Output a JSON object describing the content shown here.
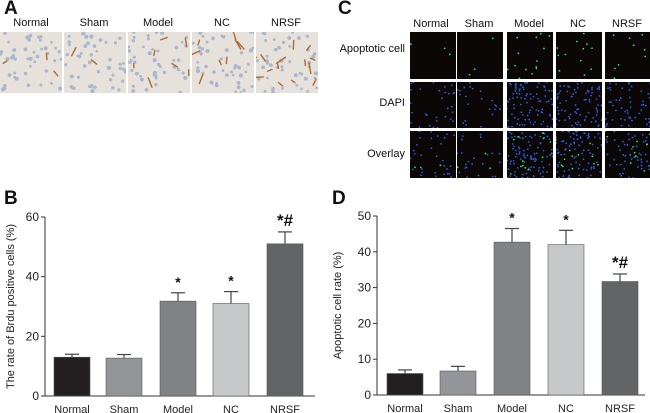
{
  "panels": {
    "A": {
      "label": "A",
      "columns": [
        "Normal",
        "Sham",
        "Model",
        "NC",
        "NRSF"
      ]
    },
    "C": {
      "label": "C",
      "columns": [
        "Normal",
        "Sham",
        "Model",
        "NC",
        "NRSF"
      ],
      "rows": [
        "Apoptotic cell",
        "DAPI",
        "Overlay"
      ]
    },
    "B": {
      "label": "B"
    },
    "D": {
      "label": "D"
    }
  },
  "colors": {
    "Normal": "#231f20",
    "Sham": "#939598",
    "Model": "#808285",
    "NC": "#c7c8ca",
    "NRSF": "#636466",
    "ihc_bg": "#e6e1da",
    "ihc_stain": "#b06a2e",
    "ihc_nuclei": "#a9b6cc",
    "fluor_bg": "#0b0707",
    "green": "#3de04a",
    "blue": "#2f5bd8"
  },
  "chart_data": [
    {
      "type": "bar",
      "panel": "B",
      "title": "",
      "categories": [
        "Normal",
        "Sham",
        "Model",
        "NC",
        "NRSF"
      ],
      "values": [
        13,
        12.7,
        31.8,
        31,
        51
      ],
      "errors": [
        1,
        1.2,
        2.8,
        4,
        4
      ],
      "annotations": [
        "",
        "",
        "*",
        "*",
        "*#"
      ],
      "xlabel": "",
      "ylabel": "The rate of Brdu positive cells (%)",
      "ylim": [
        0,
        60
      ],
      "yticks": [
        0,
        20,
        40,
        60
      ],
      "grid": false
    },
    {
      "type": "bar",
      "panel": "D",
      "title": "",
      "categories": [
        "Normal",
        "Sham",
        "Model",
        "NC",
        "NRSF"
      ],
      "values": [
        6,
        6.7,
        42.7,
        42,
        31.7
      ],
      "errors": [
        1,
        1.3,
        3.8,
        4,
        2.1
      ],
      "annotations": [
        "",
        "",
        "*",
        "*",
        "*#"
      ],
      "xlabel": "",
      "ylabel": "Apoptotic cell rate (%)",
      "ylim": [
        0,
        50
      ],
      "yticks": [
        0,
        10,
        20,
        30,
        40,
        50
      ],
      "grid": false
    }
  ]
}
